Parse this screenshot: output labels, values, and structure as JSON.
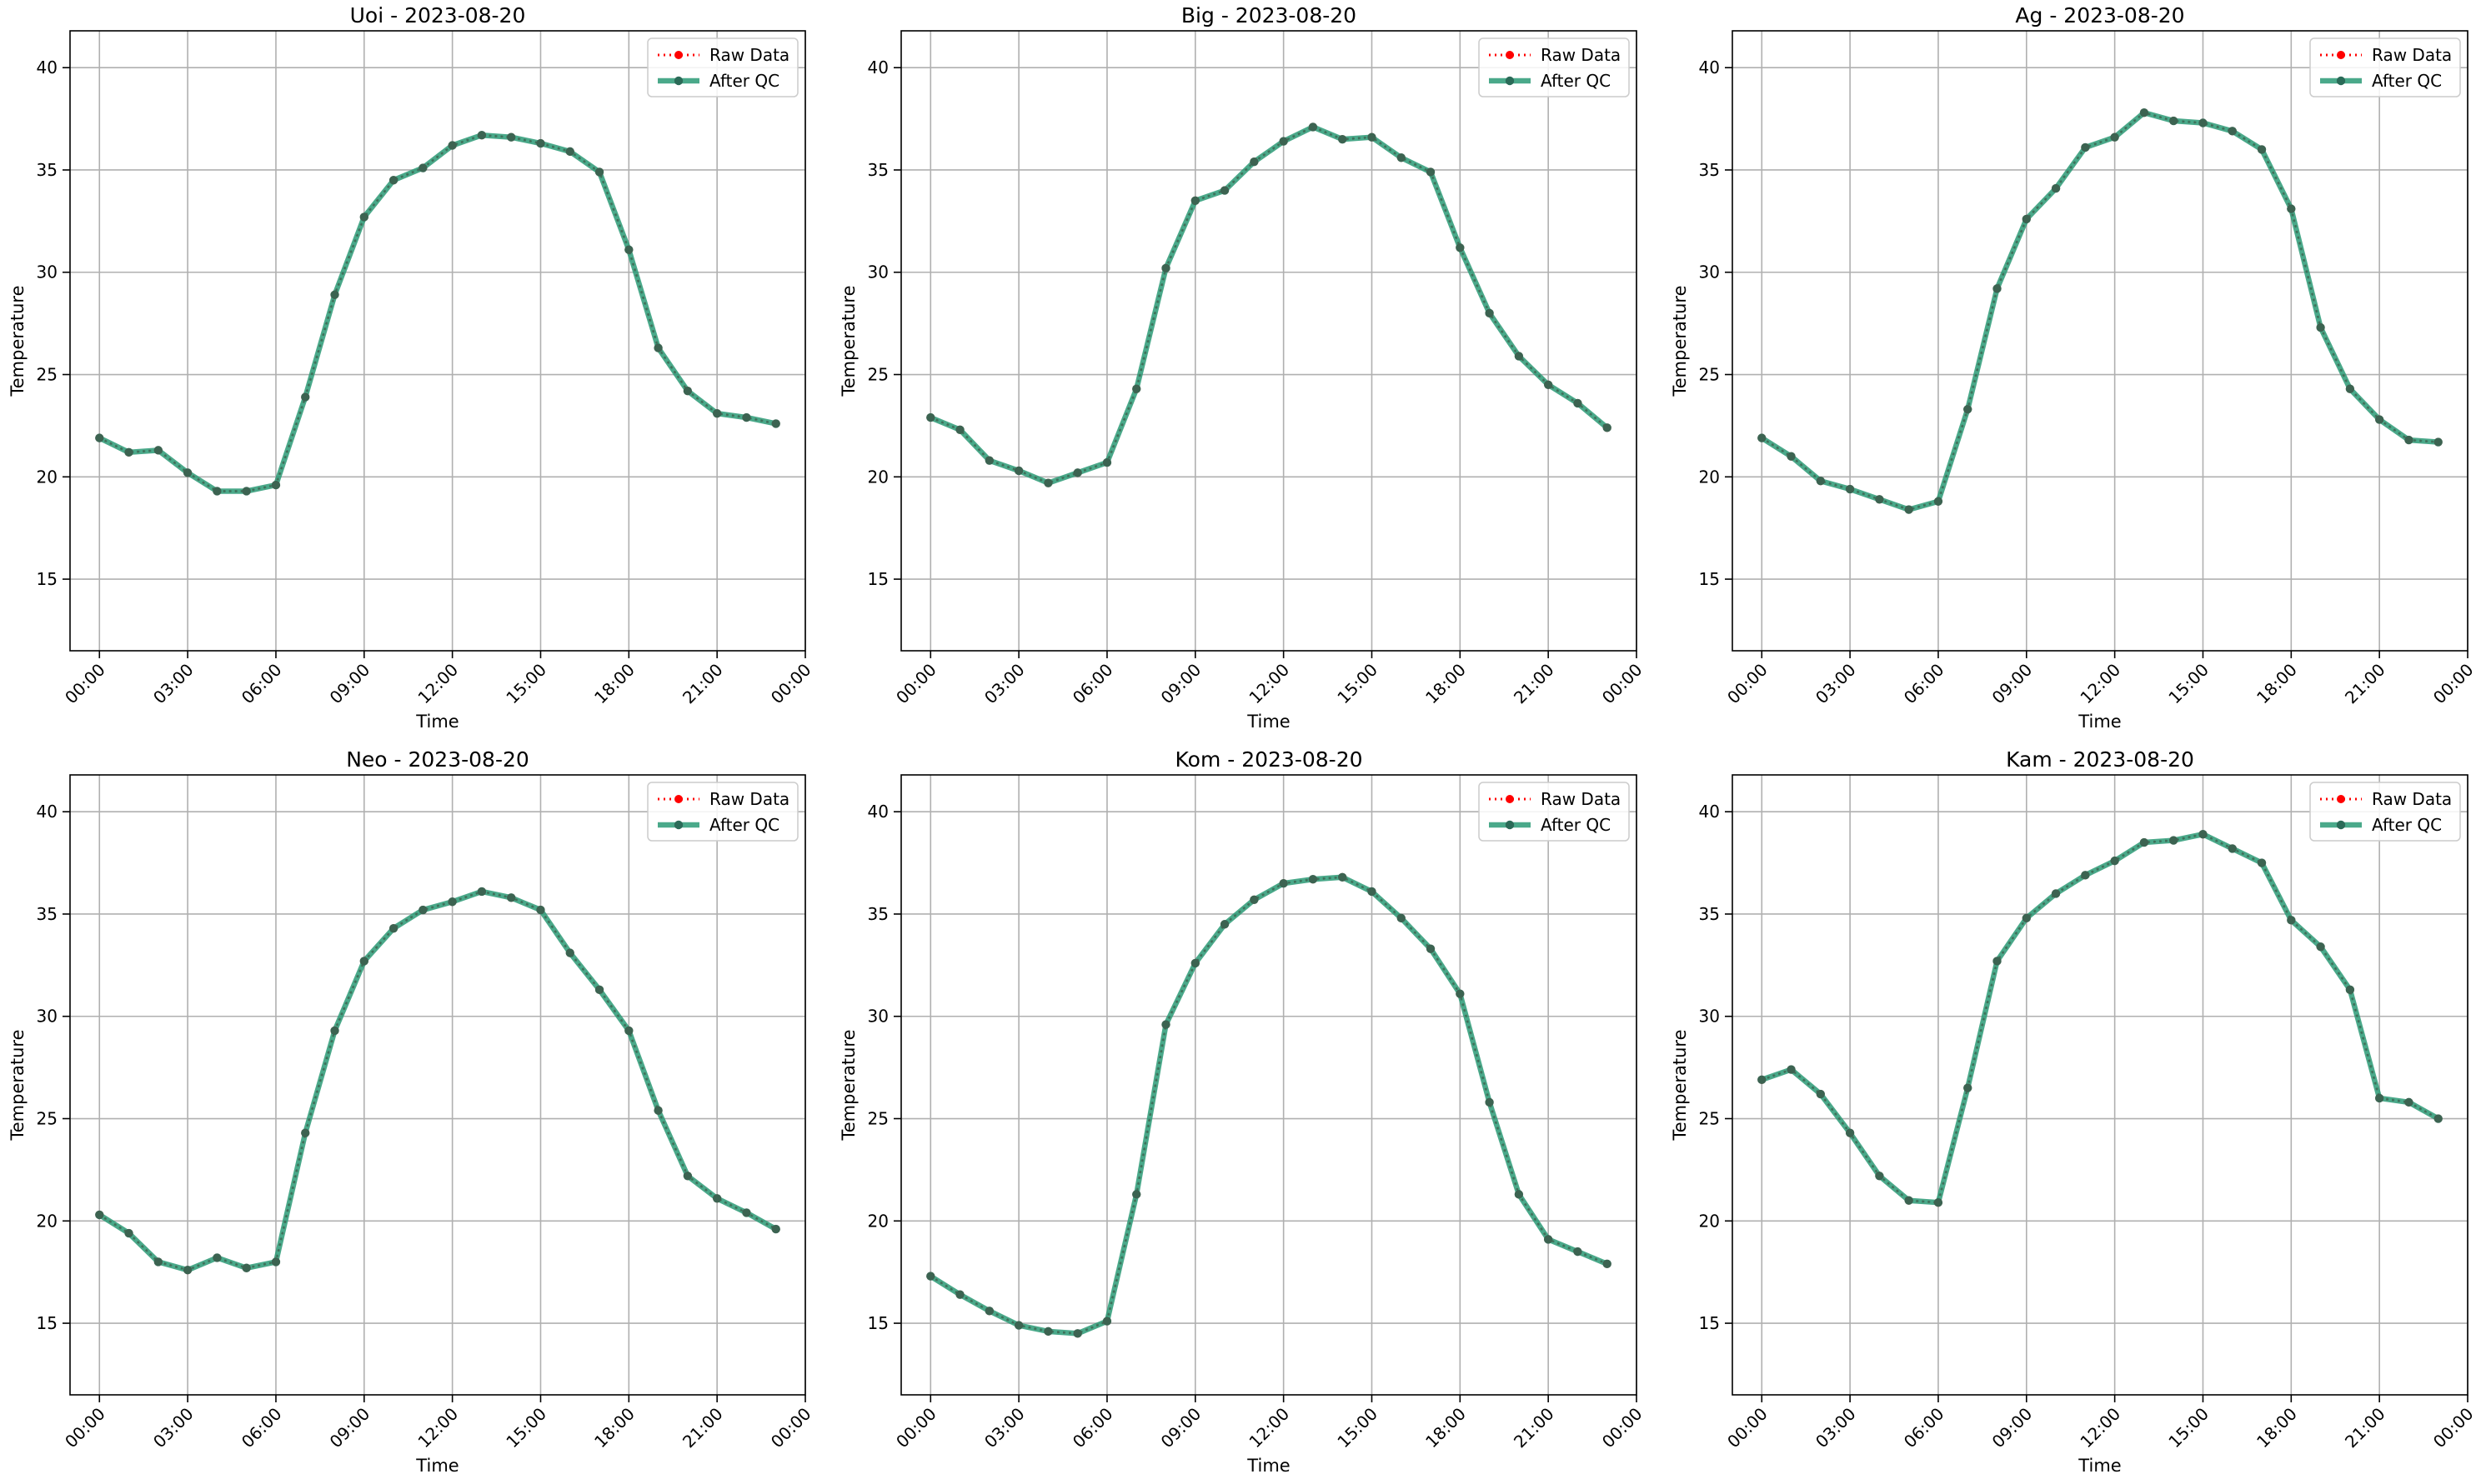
{
  "figure": {
    "background_color": "#ffffff"
  },
  "legend": {
    "location": "upper right",
    "raw_label": "Raw Data",
    "qc_label": "After QC"
  },
  "colors": {
    "raw": "#ff0000",
    "qc": "#2a9a76",
    "grid": "#b0b0b0",
    "axis": "#000000"
  },
  "chart_data": [
    {
      "type": "line",
      "title": "Uoi - 2023-08-20",
      "xlabel": "Time",
      "ylabel": "Temperature",
      "xlim": [
        -1,
        24
      ],
      "ylim": [
        11.5,
        41.8
      ],
      "grid": true,
      "x": [
        0,
        1,
        2,
        3,
        4,
        5,
        6,
        7,
        8,
        9,
        10,
        11,
        12,
        13,
        14,
        15,
        16,
        17,
        18,
        19,
        20,
        21,
        22,
        23
      ],
      "x_tick_values": [
        0,
        3,
        6,
        9,
        12,
        15,
        18,
        21,
        24
      ],
      "x_tick_labels": [
        "00:00",
        "03:00",
        "06:00",
        "09:00",
        "12:00",
        "15:00",
        "18:00",
        "21:00",
        "00:00"
      ],
      "y_tick_values": [
        15,
        20,
        25,
        30,
        35,
        40
      ],
      "y_tick_labels": [
        "15",
        "20",
        "25",
        "30",
        "35",
        "40"
      ],
      "series": [
        {
          "name": "Raw Data",
          "values": [
            21.9,
            21.2,
            21.3,
            20.2,
            19.3,
            19.3,
            19.6,
            23.9,
            28.9,
            32.7,
            34.5,
            35.1,
            36.2,
            36.7,
            36.6,
            36.3,
            35.9,
            34.9,
            31.1,
            26.3,
            24.2,
            23.1,
            22.9,
            22.6
          ]
        },
        {
          "name": "After QC",
          "values": [
            21.9,
            21.2,
            21.3,
            20.2,
            19.3,
            19.3,
            19.6,
            23.9,
            28.9,
            32.7,
            34.5,
            35.1,
            36.2,
            36.7,
            36.6,
            36.3,
            35.9,
            34.9,
            31.1,
            26.3,
            24.2,
            23.1,
            22.9,
            22.6
          ]
        }
      ]
    },
    {
      "type": "line",
      "title": "Big - 2023-08-20",
      "xlabel": "Time",
      "ylabel": "Temperature",
      "xlim": [
        -1,
        24
      ],
      "ylim": [
        11.5,
        41.8
      ],
      "grid": true,
      "x": [
        0,
        1,
        2,
        3,
        4,
        5,
        6,
        7,
        8,
        9,
        10,
        11,
        12,
        13,
        14,
        15,
        16,
        17,
        18,
        19,
        20,
        21,
        22,
        23
      ],
      "x_tick_values": [
        0,
        3,
        6,
        9,
        12,
        15,
        18,
        21,
        24
      ],
      "x_tick_labels": [
        "00:00",
        "03:00",
        "06:00",
        "09:00",
        "12:00",
        "15:00",
        "18:00",
        "21:00",
        "00:00"
      ],
      "y_tick_values": [
        15,
        20,
        25,
        30,
        35,
        40
      ],
      "y_tick_labels": [
        "15",
        "20",
        "25",
        "30",
        "35",
        "40"
      ],
      "series": [
        {
          "name": "Raw Data",
          "values": [
            22.9,
            22.3,
            20.8,
            20.3,
            19.7,
            20.2,
            20.7,
            24.3,
            30.2,
            33.5,
            34.0,
            35.4,
            36.4,
            37.1,
            36.5,
            36.6,
            35.6,
            34.9,
            31.2,
            28.0,
            25.9,
            24.5,
            23.6,
            22.4
          ]
        },
        {
          "name": "After QC",
          "values": [
            22.9,
            22.3,
            20.8,
            20.3,
            19.7,
            20.2,
            20.7,
            24.3,
            30.2,
            33.5,
            34.0,
            35.4,
            36.4,
            37.1,
            36.5,
            36.6,
            35.6,
            34.9,
            31.2,
            28.0,
            25.9,
            24.5,
            23.6,
            22.4
          ]
        }
      ]
    },
    {
      "type": "line",
      "title": "Ag - 2023-08-20",
      "xlabel": "Time",
      "ylabel": "Temperature",
      "xlim": [
        -1,
        24
      ],
      "ylim": [
        11.5,
        41.8
      ],
      "grid": true,
      "x": [
        0,
        1,
        2,
        3,
        4,
        5,
        6,
        7,
        8,
        9,
        10,
        11,
        12,
        13,
        14,
        15,
        16,
        17,
        18,
        19,
        20,
        21,
        22,
        23
      ],
      "x_tick_values": [
        0,
        3,
        6,
        9,
        12,
        15,
        18,
        21,
        24
      ],
      "x_tick_labels": [
        "00:00",
        "03:00",
        "06:00",
        "09:00",
        "12:00",
        "15:00",
        "18:00",
        "21:00",
        "00:00"
      ],
      "y_tick_values": [
        15,
        20,
        25,
        30,
        35,
        40
      ],
      "y_tick_labels": [
        "15",
        "20",
        "25",
        "30",
        "35",
        "40"
      ],
      "series": [
        {
          "name": "Raw Data",
          "values": [
            21.9,
            21.0,
            19.8,
            19.4,
            18.9,
            18.4,
            18.8,
            23.3,
            29.2,
            32.6,
            34.1,
            36.1,
            36.6,
            37.8,
            37.4,
            37.3,
            36.9,
            36.0,
            33.1,
            27.3,
            24.3,
            22.8,
            21.8,
            21.7
          ]
        },
        {
          "name": "After QC",
          "values": [
            21.9,
            21.0,
            19.8,
            19.4,
            18.9,
            18.4,
            18.8,
            23.3,
            29.2,
            32.6,
            34.1,
            36.1,
            36.6,
            37.8,
            37.4,
            37.3,
            36.9,
            36.0,
            33.1,
            27.3,
            24.3,
            22.8,
            21.8,
            21.7
          ]
        }
      ]
    },
    {
      "type": "line",
      "title": "Neo - 2023-08-20",
      "xlabel": "Time",
      "ylabel": "Temperature",
      "xlim": [
        -1,
        24
      ],
      "ylim": [
        11.5,
        41.8
      ],
      "grid": true,
      "x": [
        0,
        1,
        2,
        3,
        4,
        5,
        6,
        7,
        8,
        9,
        10,
        11,
        12,
        13,
        14,
        15,
        16,
        17,
        18,
        19,
        20,
        21,
        22,
        23
      ],
      "x_tick_values": [
        0,
        3,
        6,
        9,
        12,
        15,
        18,
        21,
        24
      ],
      "x_tick_labels": [
        "00:00",
        "03:00",
        "06:00",
        "09:00",
        "12:00",
        "15:00",
        "18:00",
        "21:00",
        "00:00"
      ],
      "y_tick_values": [
        15,
        20,
        25,
        30,
        35,
        40
      ],
      "y_tick_labels": [
        "15",
        "20",
        "25",
        "30",
        "35",
        "40"
      ],
      "series": [
        {
          "name": "Raw Data",
          "values": [
            20.3,
            19.4,
            18.0,
            17.6,
            18.2,
            17.7,
            18.0,
            24.3,
            29.3,
            32.7,
            34.3,
            35.2,
            35.6,
            36.1,
            35.8,
            35.2,
            33.1,
            31.3,
            29.3,
            25.4,
            22.2,
            21.1,
            20.4,
            19.6
          ]
        },
        {
          "name": "After QC",
          "values": [
            20.3,
            19.4,
            18.0,
            17.6,
            18.2,
            17.7,
            18.0,
            24.3,
            29.3,
            32.7,
            34.3,
            35.2,
            35.6,
            36.1,
            35.8,
            35.2,
            33.1,
            31.3,
            29.3,
            25.4,
            22.2,
            21.1,
            20.4,
            19.6
          ]
        }
      ]
    },
    {
      "type": "line",
      "title": "Kom - 2023-08-20",
      "xlabel": "Time",
      "ylabel": "Temperature",
      "xlim": [
        -1,
        24
      ],
      "ylim": [
        11.5,
        41.8
      ],
      "grid": true,
      "x": [
        0,
        1,
        2,
        3,
        4,
        5,
        6,
        7,
        8,
        9,
        10,
        11,
        12,
        13,
        14,
        15,
        16,
        17,
        18,
        19,
        20,
        21,
        22,
        23
      ],
      "x_tick_values": [
        0,
        3,
        6,
        9,
        12,
        15,
        18,
        21,
        24
      ],
      "x_tick_labels": [
        "00:00",
        "03:00",
        "06:00",
        "09:00",
        "12:00",
        "15:00",
        "18:00",
        "21:00",
        "00:00"
      ],
      "y_tick_values": [
        15,
        20,
        25,
        30,
        35,
        40
      ],
      "y_tick_labels": [
        "15",
        "20",
        "25",
        "30",
        "35",
        "40"
      ],
      "series": [
        {
          "name": "Raw Data",
          "values": [
            17.3,
            16.4,
            15.6,
            14.9,
            14.6,
            14.5,
            15.1,
            21.3,
            29.6,
            32.6,
            34.5,
            35.7,
            36.5,
            36.7,
            36.8,
            36.1,
            34.8,
            33.3,
            31.1,
            25.8,
            21.3,
            19.1,
            18.5,
            17.9
          ]
        },
        {
          "name": "After QC",
          "values": [
            17.3,
            16.4,
            15.6,
            14.9,
            14.6,
            14.5,
            15.1,
            21.3,
            29.6,
            32.6,
            34.5,
            35.7,
            36.5,
            36.7,
            36.8,
            36.1,
            34.8,
            33.3,
            31.1,
            25.8,
            21.3,
            19.1,
            18.5,
            17.9
          ]
        }
      ]
    },
    {
      "type": "line",
      "title": "Kam - 2023-08-20",
      "xlabel": "Time",
      "ylabel": "Temperature",
      "xlim": [
        -1,
        24
      ],
      "ylim": [
        11.5,
        41.8
      ],
      "grid": true,
      "x": [
        0,
        1,
        2,
        3,
        4,
        5,
        6,
        7,
        8,
        9,
        10,
        11,
        12,
        13,
        14,
        15,
        16,
        17,
        18,
        19,
        20,
        21,
        22,
        23
      ],
      "x_tick_values": [
        0,
        3,
        6,
        9,
        12,
        15,
        18,
        21,
        24
      ],
      "x_tick_labels": [
        "00:00",
        "03:00",
        "06:00",
        "09:00",
        "12:00",
        "15:00",
        "18:00",
        "21:00",
        "00:00"
      ],
      "y_tick_values": [
        15,
        20,
        25,
        30,
        35,
        40
      ],
      "y_tick_labels": [
        "15",
        "20",
        "25",
        "30",
        "35",
        "40"
      ],
      "series": [
        {
          "name": "Raw Data",
          "values": [
            26.9,
            27.4,
            26.2,
            24.3,
            22.2,
            21.0,
            20.9,
            26.5,
            32.7,
            34.8,
            36.0,
            36.9,
            37.6,
            38.5,
            38.6,
            38.9,
            38.2,
            37.5,
            34.7,
            33.4,
            31.3,
            26.0,
            25.8,
            25.0
          ]
        },
        {
          "name": "After QC",
          "values": [
            26.9,
            27.4,
            26.2,
            24.3,
            22.2,
            21.0,
            20.9,
            26.5,
            32.7,
            34.8,
            36.0,
            36.9,
            37.6,
            38.5,
            38.6,
            38.9,
            38.2,
            37.5,
            34.7,
            33.4,
            31.3,
            26.0,
            25.8,
            25.0
          ]
        }
      ]
    }
  ]
}
